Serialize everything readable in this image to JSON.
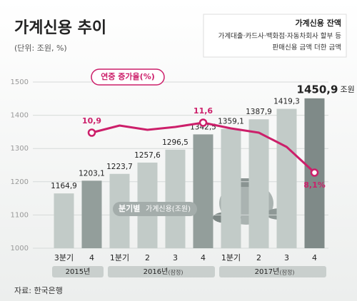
{
  "chart_data": {
    "type": "bar",
    "title": "가계신용 추이",
    "unit_note": "(단위: 조원, %)",
    "legend_box": {
      "title": "가계신용 잔액",
      "lines": [
        "가계대출·카드사·백화점·자동차회사 할부 등",
        "판매신용 금액 더한 금액"
      ]
    },
    "bar_label": {
      "text": "분기별",
      "sub": "가계신용(조원)"
    },
    "categories": [
      "3분기",
      "4",
      "1분기",
      "2",
      "3",
      "4",
      "1분기",
      "2",
      "3",
      "4"
    ],
    "year_groups": [
      {
        "label": "2015년",
        "note": null,
        "span": [
          0,
          1
        ]
      },
      {
        "label": "2016년",
        "note": "(잠정)",
        "span": [
          2,
          5
        ]
      },
      {
        "label": "2017년",
        "note": "(잠정)",
        "span": [
          6,
          9
        ]
      }
    ],
    "values": [
      1164.9,
      1203.1,
      1223.7,
      1257.6,
      1296.5,
      1342.5,
      1359.1,
      1387.9,
      1419.3,
      1450.9
    ],
    "value_labels": [
      "1164,9",
      "1203,1",
      "1223,7",
      "1257,6",
      "1296,5",
      "1342,5",
      "1359,1",
      "1387,9",
      "1419,3",
      "1450,9"
    ],
    "last_unit": "조원",
    "colors": [
      "#c2cbc8",
      "#939e9b",
      "#c2cbc8",
      "#c2cbc8",
      "#c2cbc8",
      "#939e9b",
      "#c2cbc8",
      "#c2cbc8",
      "#c2cbc8",
      "#7f8a88"
    ],
    "ylim": [
      1000,
      1500
    ],
    "yticks": [
      1000,
      1100,
      1200,
      1300,
      1400,
      1500
    ],
    "series": [
      {
        "name": "연중 증가율(%)",
        "color": "#cc1f6a",
        "axis": "y2",
        "values": [
          null,
          10.9,
          11.4,
          11.1,
          11.3,
          11.6,
          11.2,
          10.9,
          9.9,
          8.1
        ],
        "value_labels": [
          null,
          "10,9",
          null,
          null,
          null,
          "11,6",
          null,
          null,
          null,
          "8,1%"
        ]
      }
    ],
    "y2lim": [
      2.8,
      14.45
    ],
    "source": "자료: 한국은행"
  }
}
